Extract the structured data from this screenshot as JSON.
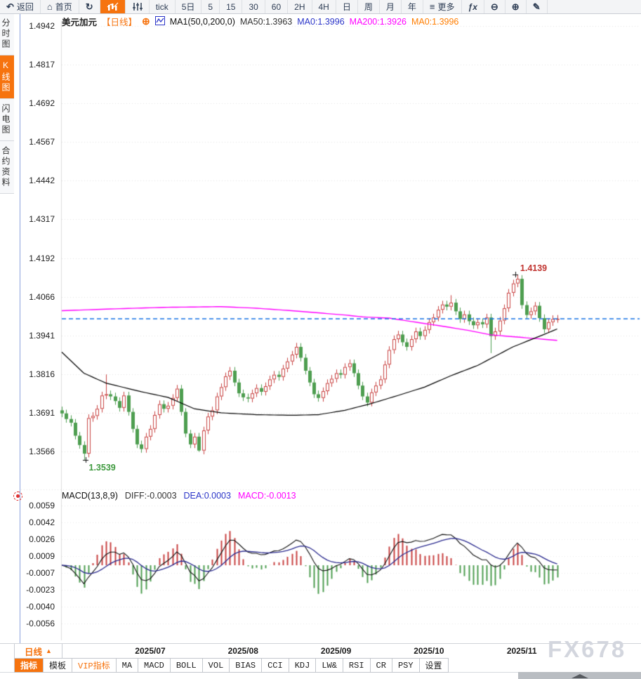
{
  "window": {
    "watermark": "FX678"
  },
  "toolbar": {
    "items": [
      {
        "name": "back",
        "icon": "back-arrow-icon",
        "glyph": "↶",
        "label": "返回"
      },
      {
        "name": "home",
        "icon": "home-icon",
        "glyph": "⌂",
        "label": "首页"
      },
      {
        "name": "refresh",
        "icon": "refresh-icon",
        "glyph": "↻"
      },
      {
        "name": "candlestick-chart",
        "icon": "candlestick-chart-icon",
        "active": true
      },
      {
        "name": "indicator-sliders",
        "icon": "sliders-icon"
      },
      {
        "name": "tick",
        "label": "tick"
      },
      {
        "name": "period-5d",
        "label": "5日"
      },
      {
        "name": "period-5",
        "label": "5"
      },
      {
        "name": "period-15",
        "label": "15"
      },
      {
        "name": "period-30",
        "label": "30"
      },
      {
        "name": "period-60",
        "label": "60"
      },
      {
        "name": "period-2h",
        "label": "2H"
      },
      {
        "name": "period-4h",
        "label": "4H"
      },
      {
        "name": "period-day",
        "label": "日"
      },
      {
        "name": "period-week",
        "label": "周"
      },
      {
        "name": "period-month",
        "label": "月"
      },
      {
        "name": "period-year",
        "label": "年"
      },
      {
        "name": "more",
        "icon": "menu-icon",
        "glyph": "≡",
        "label": "更多"
      },
      {
        "name": "fx",
        "label": "ƒx"
      },
      {
        "name": "zoom-out",
        "icon": "zoom-out-icon",
        "glyph": "⊖"
      },
      {
        "name": "zoom-in",
        "icon": "zoom-in-icon",
        "glyph": "⊕"
      },
      {
        "name": "draw",
        "icon": "pencil-icon",
        "glyph": "✎"
      }
    ]
  },
  "sidebar": {
    "items": [
      {
        "name": "time-chart",
        "label": "分时图"
      },
      {
        "name": "kline-chart",
        "label": "K线图",
        "active": true
      },
      {
        "name": "lightning-chart",
        "label": "闪电图"
      },
      {
        "name": "contract-info",
        "label": "合约资料"
      }
    ]
  },
  "price_header": {
    "symbol": "美元加元",
    "period_tag": "【日线】",
    "add_icon": "⊕",
    "ma_settings": "MA1(50,0,200,0)",
    "ma_values": [
      {
        "label": "MA50:1.3963",
        "color": "#333333"
      },
      {
        "label": "MA0:1.3996",
        "color": "#2b35c8"
      },
      {
        "label": "MA200:1.3926",
        "color": "#ff00ff"
      },
      {
        "label": "MA0:1.3996",
        "color": "#ff7d00"
      }
    ]
  },
  "macd_header": {
    "title": "MACD(13,8,9)",
    "values": [
      {
        "label": "DIFF:-0.0003",
        "color": "#333333"
      },
      {
        "label": "DEA:0.0003",
        "color": "#2b35c8"
      },
      {
        "label": "MACD:-0.0013",
        "color": "#ff00ff"
      }
    ]
  },
  "bottom": {
    "period_selector": "日线",
    "period_arrow": "▲",
    "tabs": [
      {
        "name": "indicators",
        "label": "指标",
        "active": true
      },
      {
        "name": "templates",
        "label": "模板"
      },
      {
        "name": "vip-indicators",
        "label": "VIP指标",
        "vip": true
      },
      {
        "name": "ma",
        "label": "MA"
      },
      {
        "name": "macd",
        "label": "MACD"
      },
      {
        "name": "boll",
        "label": "BOLL"
      },
      {
        "name": "vol",
        "label": "VOL"
      },
      {
        "name": "bias",
        "label": "BIAS"
      },
      {
        "name": "cci",
        "label": "CCI"
      },
      {
        "name": "kdj",
        "label": "KDJ"
      },
      {
        "name": "lwr",
        "label": "LW&"
      },
      {
        "name": "rsi",
        "label": "RSI"
      },
      {
        "name": "cr",
        "label": "CR"
      },
      {
        "name": "psy",
        "label": "PSY"
      },
      {
        "name": "settings",
        "label": "设置"
      }
    ]
  },
  "chart_data": {
    "type": "candlestick",
    "title": "美元加元 日线 (USD/CAD daily)",
    "price_panel": {
      "y_ticks": [
        1.4942,
        1.4817,
        1.4692,
        1.4567,
        1.4442,
        1.4317,
        1.4192,
        1.4066,
        1.3941,
        1.3816,
        1.3691,
        1.3566
      ],
      "last_price": 1.3996,
      "high_label": {
        "value": "1.4139",
        "index": 103
      },
      "low_label": {
        "value": "1.3539",
        "index": 5
      },
      "up_color": "#c94342",
      "down_color": "#4e9e50",
      "ma50_color": "#000000",
      "ma200_color": "#ff00ff",
      "last_price_color": "#1673e6",
      "first_open": 1.37,
      "default_wick": 0.0012,
      "closes": [
        1.369,
        1.3672,
        1.366,
        1.3618,
        1.3588,
        1.356,
        1.3675,
        1.3682,
        1.3705,
        1.3748,
        1.3752,
        1.3745,
        1.373,
        1.3708,
        1.3748,
        1.3695,
        1.364,
        1.359,
        1.3575,
        1.3615,
        1.364,
        1.3685,
        1.372,
        1.3705,
        1.3715,
        1.374,
        1.377,
        1.3695,
        1.3625,
        1.359,
        1.3615,
        1.357,
        1.3635,
        1.368,
        1.37,
        1.3745,
        1.3775,
        1.381,
        1.3828,
        1.379,
        1.3755,
        1.3742,
        1.3738,
        1.3755,
        1.3772,
        1.376,
        1.3778,
        1.38,
        1.3815,
        1.3808,
        1.3835,
        1.3858,
        1.388,
        1.3905,
        1.387,
        1.3828,
        1.379,
        1.3752,
        1.374,
        1.3762,
        1.3788,
        1.3802,
        1.382,
        1.3815,
        1.384,
        1.3852,
        1.382,
        1.378,
        1.3745,
        1.3725,
        1.3758,
        1.378,
        1.38,
        1.3848,
        1.3895,
        1.393,
        1.3945,
        1.392,
        1.3905,
        1.393,
        1.3955,
        1.394,
        1.396,
        1.3985,
        1.4,
        1.4025,
        1.4042,
        1.4035,
        1.4048,
        1.402,
        1.3995,
        1.401,
        1.3988,
        1.3975,
        1.3985,
        1.3978,
        1.4,
        1.394,
        1.3955,
        1.399,
        1.403,
        1.408,
        1.411,
        1.4125,
        1.404,
        1.4008,
        1.402,
        1.4038,
        1.3998,
        1.3962,
        1.3985,
        1.3995,
        1.3996
      ],
      "wick_overrides": {
        "5": {
          "l": 1.3539
        },
        "10": {
          "h": 1.3816
        },
        "31": {
          "l": 1.3566
        },
        "53": {
          "h": 1.3918
        },
        "88": {
          "h": 1.4072
        },
        "97": {
          "l": 1.3885
        },
        "103": {
          "h": 1.4139
        }
      },
      "ma50_anchors": [
        [
          0,
          1.3888
        ],
        [
          5,
          1.382
        ],
        [
          10,
          1.3788
        ],
        [
          18,
          1.376
        ],
        [
          24,
          1.3742
        ],
        [
          30,
          1.3705
        ],
        [
          36,
          1.3692
        ],
        [
          44,
          1.3686
        ],
        [
          52,
          1.3684
        ],
        [
          58,
          1.3686
        ],
        [
          64,
          1.37
        ],
        [
          70,
          1.3722
        ],
        [
          76,
          1.3748
        ],
        [
          82,
          1.3775
        ],
        [
          88,
          1.3812
        ],
        [
          94,
          1.3845
        ],
        [
          98,
          1.3875
        ],
        [
          102,
          1.3905
        ],
        [
          106,
          1.3928
        ],
        [
          109,
          1.3945
        ],
        [
          112,
          1.3963
        ]
      ],
      "ma200_anchors": [
        [
          0,
          1.4022
        ],
        [
          12,
          1.4028
        ],
        [
          24,
          1.4033
        ],
        [
          36,
          1.4035
        ],
        [
          44,
          1.403
        ],
        [
          52,
          1.4022
        ],
        [
          58,
          1.4015
        ],
        [
          64,
          1.4008
        ],
        [
          68,
          1.4002
        ],
        [
          74,
          1.3998
        ],
        [
          80,
          1.3985
        ],
        [
          86,
          1.3972
        ],
        [
          92,
          1.3958
        ],
        [
          97,
          1.3944
        ],
        [
          102,
          1.3938
        ],
        [
          107,
          1.3932
        ],
        [
          112,
          1.3926
        ]
      ]
    },
    "x_axis": {
      "months": [
        {
          "label": "2025/07",
          "index": 20
        },
        {
          "label": "2025/08",
          "index": 41
        },
        {
          "label": "2025/09",
          "index": 62
        },
        {
          "label": "2025/10",
          "index": 83
        },
        {
          "label": "2025/11",
          "index": 104
        }
      ]
    },
    "macd_panel": {
      "params": [
        13,
        8,
        9
      ],
      "y_ticks": [
        "0.0059",
        "0.0042",
        "0.0026",
        "0.0009",
        "-0.0007",
        "-0.0023",
        "-0.0040",
        "-0.0056"
      ],
      "diff_last": -0.0003,
      "dea_last": 0.0003,
      "macd_last": -0.0013,
      "bar_up_color": "#c94342",
      "bar_down_color": "#4e9e50",
      "diff_color": "#111111",
      "dea_color": "#2b2b8f"
    }
  }
}
